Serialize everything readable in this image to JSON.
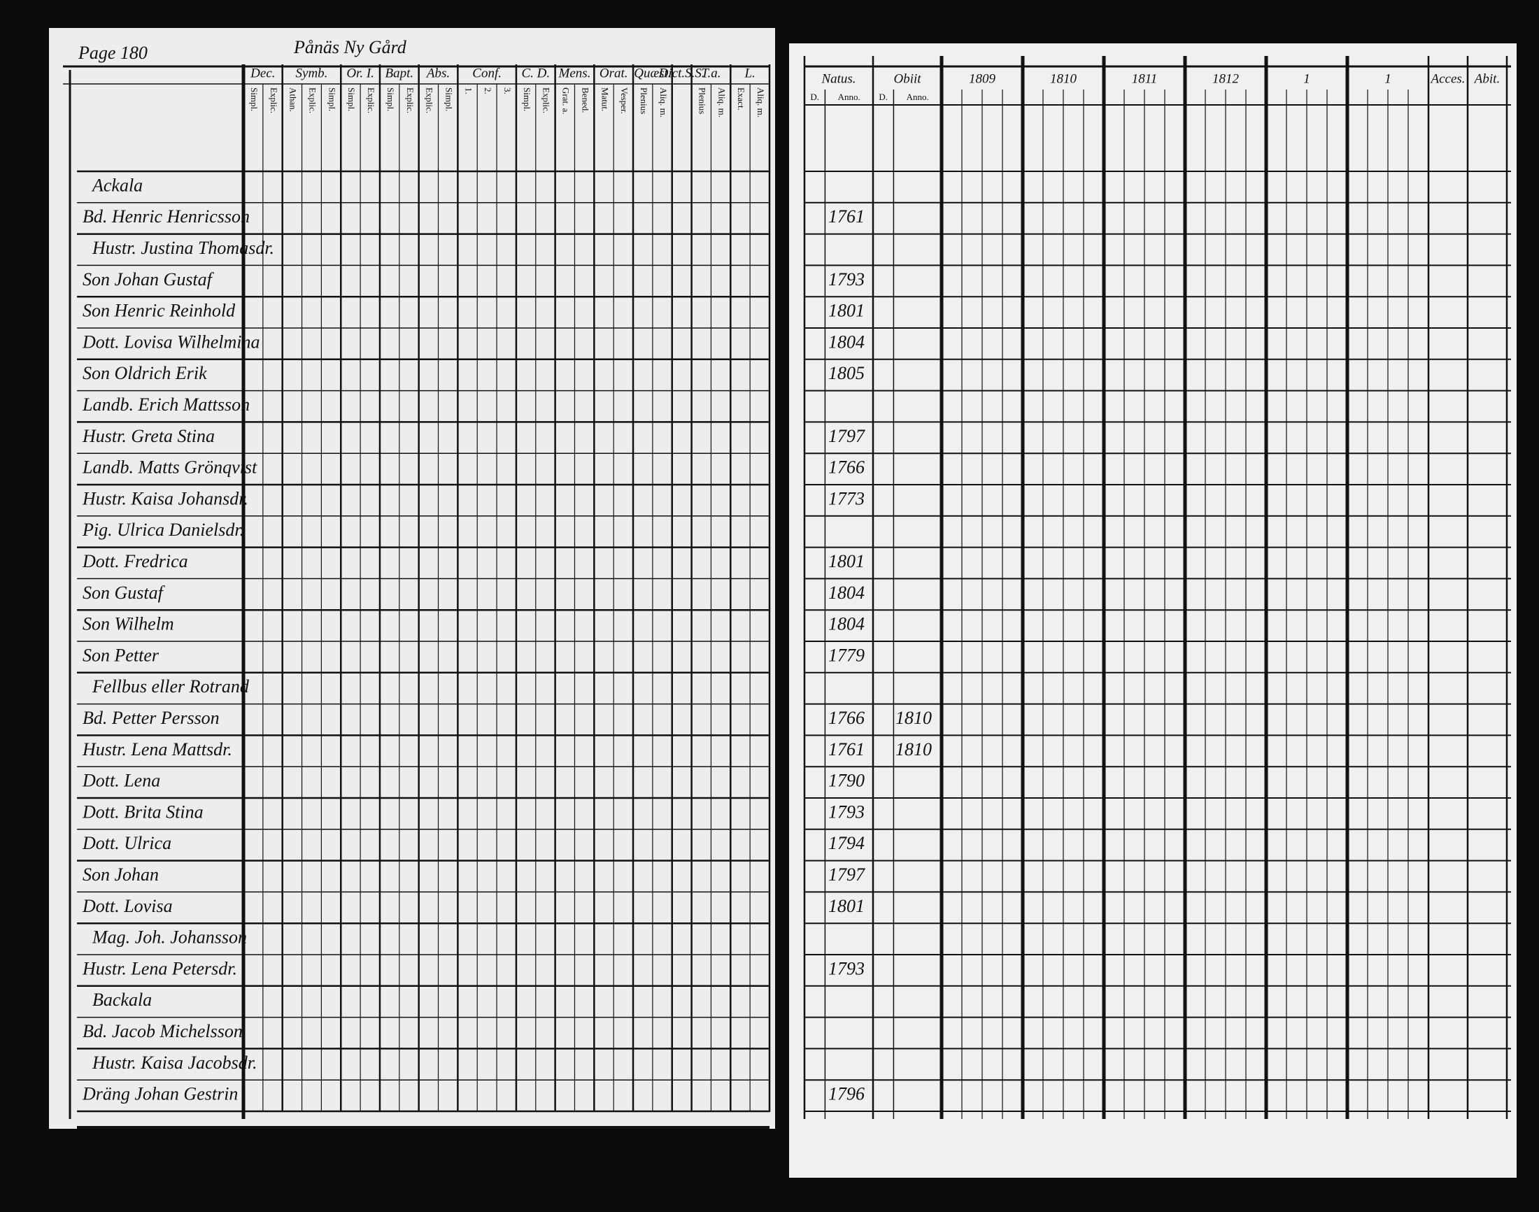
{
  "left_page": {
    "page_label": "Page 180",
    "village": "Pånäs Ny Gård",
    "columns": [
      {
        "title": "Dec.",
        "sub": [
          "Simpl.",
          "Explic."
        ]
      },
      {
        "title": "Symb.",
        "sub": [
          "Athan.",
          "Explic.",
          "Simpl."
        ]
      },
      {
        "title": "Or. I.",
        "sub": [
          "Simpl.",
          "Explic."
        ]
      },
      {
        "title": "Bapt.",
        "sub": [
          "Simpl.",
          "Explic."
        ]
      },
      {
        "title": "Abs.",
        "sub": [
          "Explic.",
          "Simpl."
        ]
      },
      {
        "title": "Conf.",
        "sub": [
          "1.",
          "2.",
          "3."
        ]
      },
      {
        "title": "C. D.",
        "sub": [
          "Simpl.",
          "Explic."
        ]
      },
      {
        "title": "Mens.",
        "sub": [
          "Grat. a.",
          "Bened."
        ]
      },
      {
        "title": "Orat.",
        "sub": [
          "Matut.",
          "Vesper."
        ]
      },
      {
        "title": "Quæst.",
        "sub": [
          "Plenius",
          "Aliq. m."
        ]
      },
      {
        "title": "Dict.S.S.",
        "sub": []
      },
      {
        "title": "T.a.",
        "sub": [
          "Plenius",
          "Aliq. m."
        ]
      },
      {
        "title": "L.",
        "sub": [
          "Exact.",
          "Aliq. m."
        ]
      }
    ],
    "rows": [
      {
        "name": "Ackala"
      },
      {
        "name": "Bd. Henric Henricsson",
        "born": "1761"
      },
      {
        "name": "Hustr. Justina Thomasdr."
      },
      {
        "name": "Son Johan Gustaf",
        "born": "1793"
      },
      {
        "name": "Son Henric Reinhold",
        "born": "1801"
      },
      {
        "name": "Dott. Lovisa Wilhelmina",
        "born": "1804"
      },
      {
        "name": "Son Oldrich Erik",
        "born": "1805"
      },
      {
        "name": "Landb. Erich Mattsson"
      },
      {
        "name": "Hustr. Greta Stina",
        "born": "1797"
      },
      {
        "name": "Landb. Matts Grönqvist",
        "born": "1766"
      },
      {
        "name": "Hustr. Kaisa Johansdr.",
        "born": "1773"
      },
      {
        "name": "Pig. Ulrica Danielsdr."
      },
      {
        "name": "Dott. Fredrica",
        "born": "1801"
      },
      {
        "name": "Son Gustaf",
        "born": "1804"
      },
      {
        "name": "Son Wilhelm",
        "born": "1804"
      },
      {
        "name": "Son Petter",
        "born": "1779"
      },
      {
        "name": "Fellbus eller Rotrand"
      },
      {
        "name": "Bd. Petter Persson",
        "born": "1766",
        "died": "1810"
      },
      {
        "name": "Hustr. Lena Mattsdr.",
        "born": "1761",
        "died": "1810"
      },
      {
        "name": "Dott. Lena",
        "born": "1790"
      },
      {
        "name": "Dott. Brita Stina",
        "born": "1793"
      },
      {
        "name": "Dott. Ulrica",
        "born": "1794"
      },
      {
        "name": "Son Johan",
        "born": "1797"
      },
      {
        "name": "Dott. Lovisa",
        "born": "1801"
      },
      {
        "name": "Mag. Joh. Johansson"
      },
      {
        "name": "Hustr. Lena Petersdr.",
        "born": "1793"
      },
      {
        "name": "Backala"
      },
      {
        "name": "Bd. Jacob Michelsson"
      },
      {
        "name": "Hustr. Kaisa Jacobsdr."
      },
      {
        "name": "Dräng Johan Gestrin",
        "born": "1796"
      }
    ]
  },
  "right_page": {
    "columns": [
      {
        "title": "Natus.",
        "sub": [
          "D.",
          "Anno."
        ]
      },
      {
        "title": "Obiit",
        "sub": [
          "D.",
          "Anno."
        ]
      },
      {
        "title": "1809",
        "sub": []
      },
      {
        "title": "1810",
        "sub": []
      },
      {
        "title": "1811",
        "sub": []
      },
      {
        "title": "1812",
        "sub": []
      },
      {
        "title": "1",
        "sub": []
      },
      {
        "title": "1",
        "sub": []
      },
      {
        "title": "Acces.",
        "sub": []
      },
      {
        "title": "Abit.",
        "sub": []
      }
    ]
  }
}
